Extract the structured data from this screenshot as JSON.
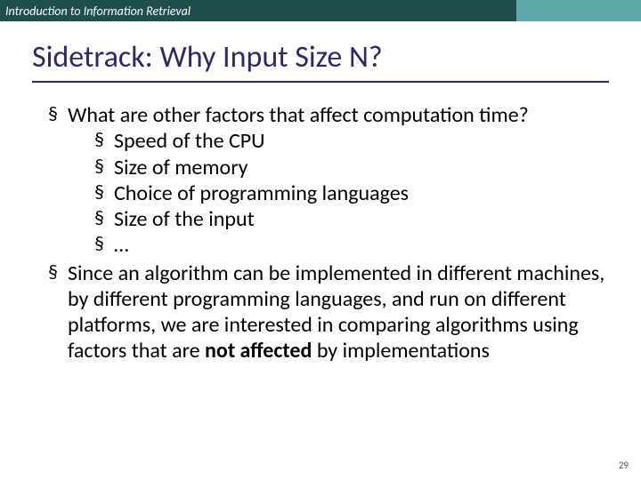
{
  "header": {
    "text": "Introduction to Information Retrieval",
    "left_bg": "#1f4e4e",
    "right_bg": "#5fa8a8",
    "text_color": "#ffffff"
  },
  "title": {
    "text": "Sidetrack: Why Input Size N?",
    "color": "#2a2a6a",
    "underline_color": "#2a2a6a",
    "fontsize": 34
  },
  "bullets": [
    {
      "text": "What are other factors that affect computation time?",
      "children": [
        {
          "text": "Speed of the CPU"
        },
        {
          "text": "Size of memory"
        },
        {
          "text": "Choice of programming languages"
        },
        {
          "text": "Size of the input"
        },
        {
          "text": "…"
        }
      ]
    },
    {
      "text_parts": [
        {
          "t": "Since an algorithm can be implemented in different machines, by different programming languages, and run on different platforms, we are interested in comparing algorithms using factors that are ",
          "bold": false
        },
        {
          "t": "not affected",
          "bold": true
        },
        {
          "t": " by implementations",
          "bold": false
        }
      ]
    }
  ],
  "page_number": "29",
  "body_fontsize": 24,
  "background_color": "#ffffff"
}
